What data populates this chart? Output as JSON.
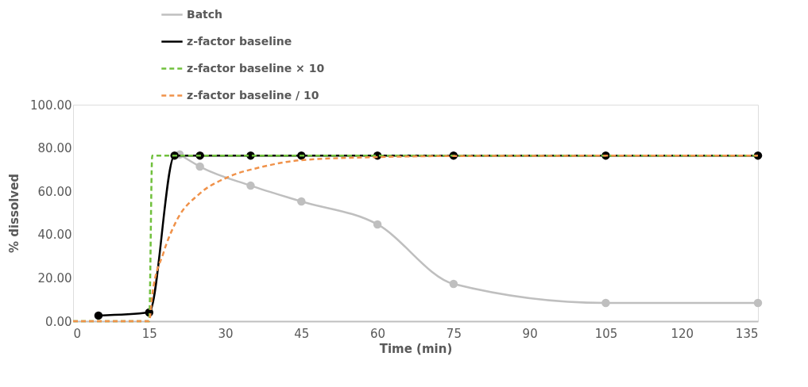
{
  "chart_data": {
    "type": "line",
    "xlabel": "Time (min)",
    "ylabel": "% dissolved",
    "xlim": [
      0,
      135
    ],
    "xticks": [
      0,
      15,
      30,
      45,
      60,
      75,
      90,
      105,
      120,
      135
    ],
    "ylim": [
      0,
      100
    ],
    "yticks": [
      {
        "value": 0,
        "label": "0.00"
      },
      {
        "value": 20,
        "label": "20.00"
      },
      {
        "value": 40,
        "label": "40.00"
      },
      {
        "value": 60,
        "label": "60.00"
      },
      {
        "value": 80,
        "label": "80.00"
      },
      {
        "value": 100,
        "label": "100.00"
      }
    ],
    "legend": "top left",
    "grid": false,
    "series": [
      {
        "name": "Batch",
        "color": "#bfbfbf",
        "marker": "circle",
        "line_style": "solid",
        "x": [
          21,
          25,
          35,
          45,
          60,
          75,
          105,
          135
        ],
        "values": [
          77,
          71.4,
          62.6,
          55.3,
          44.7,
          17.2,
          8.4,
          8.4
        ]
      },
      {
        "name": "z-factor baseline",
        "color": "#000000",
        "marker": "circle",
        "line_style": "solid",
        "x": [
          5,
          15,
          20,
          25,
          35,
          45,
          60,
          75,
          105,
          135
        ],
        "values": [
          2.6,
          4.0,
          76.5,
          76.5,
          76.5,
          76.5,
          76.5,
          76.5,
          76.5,
          76.5
        ]
      },
      {
        "name": "z-factor baseline × 10",
        "color": "#70c03c",
        "marker": "none",
        "line_style": "dashed",
        "x": [
          0,
          15,
          15.6,
          135
        ],
        "values": [
          0,
          0,
          76.5,
          76.5
        ]
      },
      {
        "name": "z-factor baseline  / 10",
        "color": "#f0924a",
        "marker": "none",
        "line_style": "dashed",
        "x": [
          0,
          15,
          15.6,
          17.8,
          20.3,
          25,
          30.3,
          37.5,
          45,
          60,
          75,
          135
        ],
        "values": [
          0,
          0,
          12,
          31.5,
          46,
          59,
          66.3,
          71.4,
          74.4,
          75.8,
          76.3,
          76.5
        ]
      }
    ]
  }
}
